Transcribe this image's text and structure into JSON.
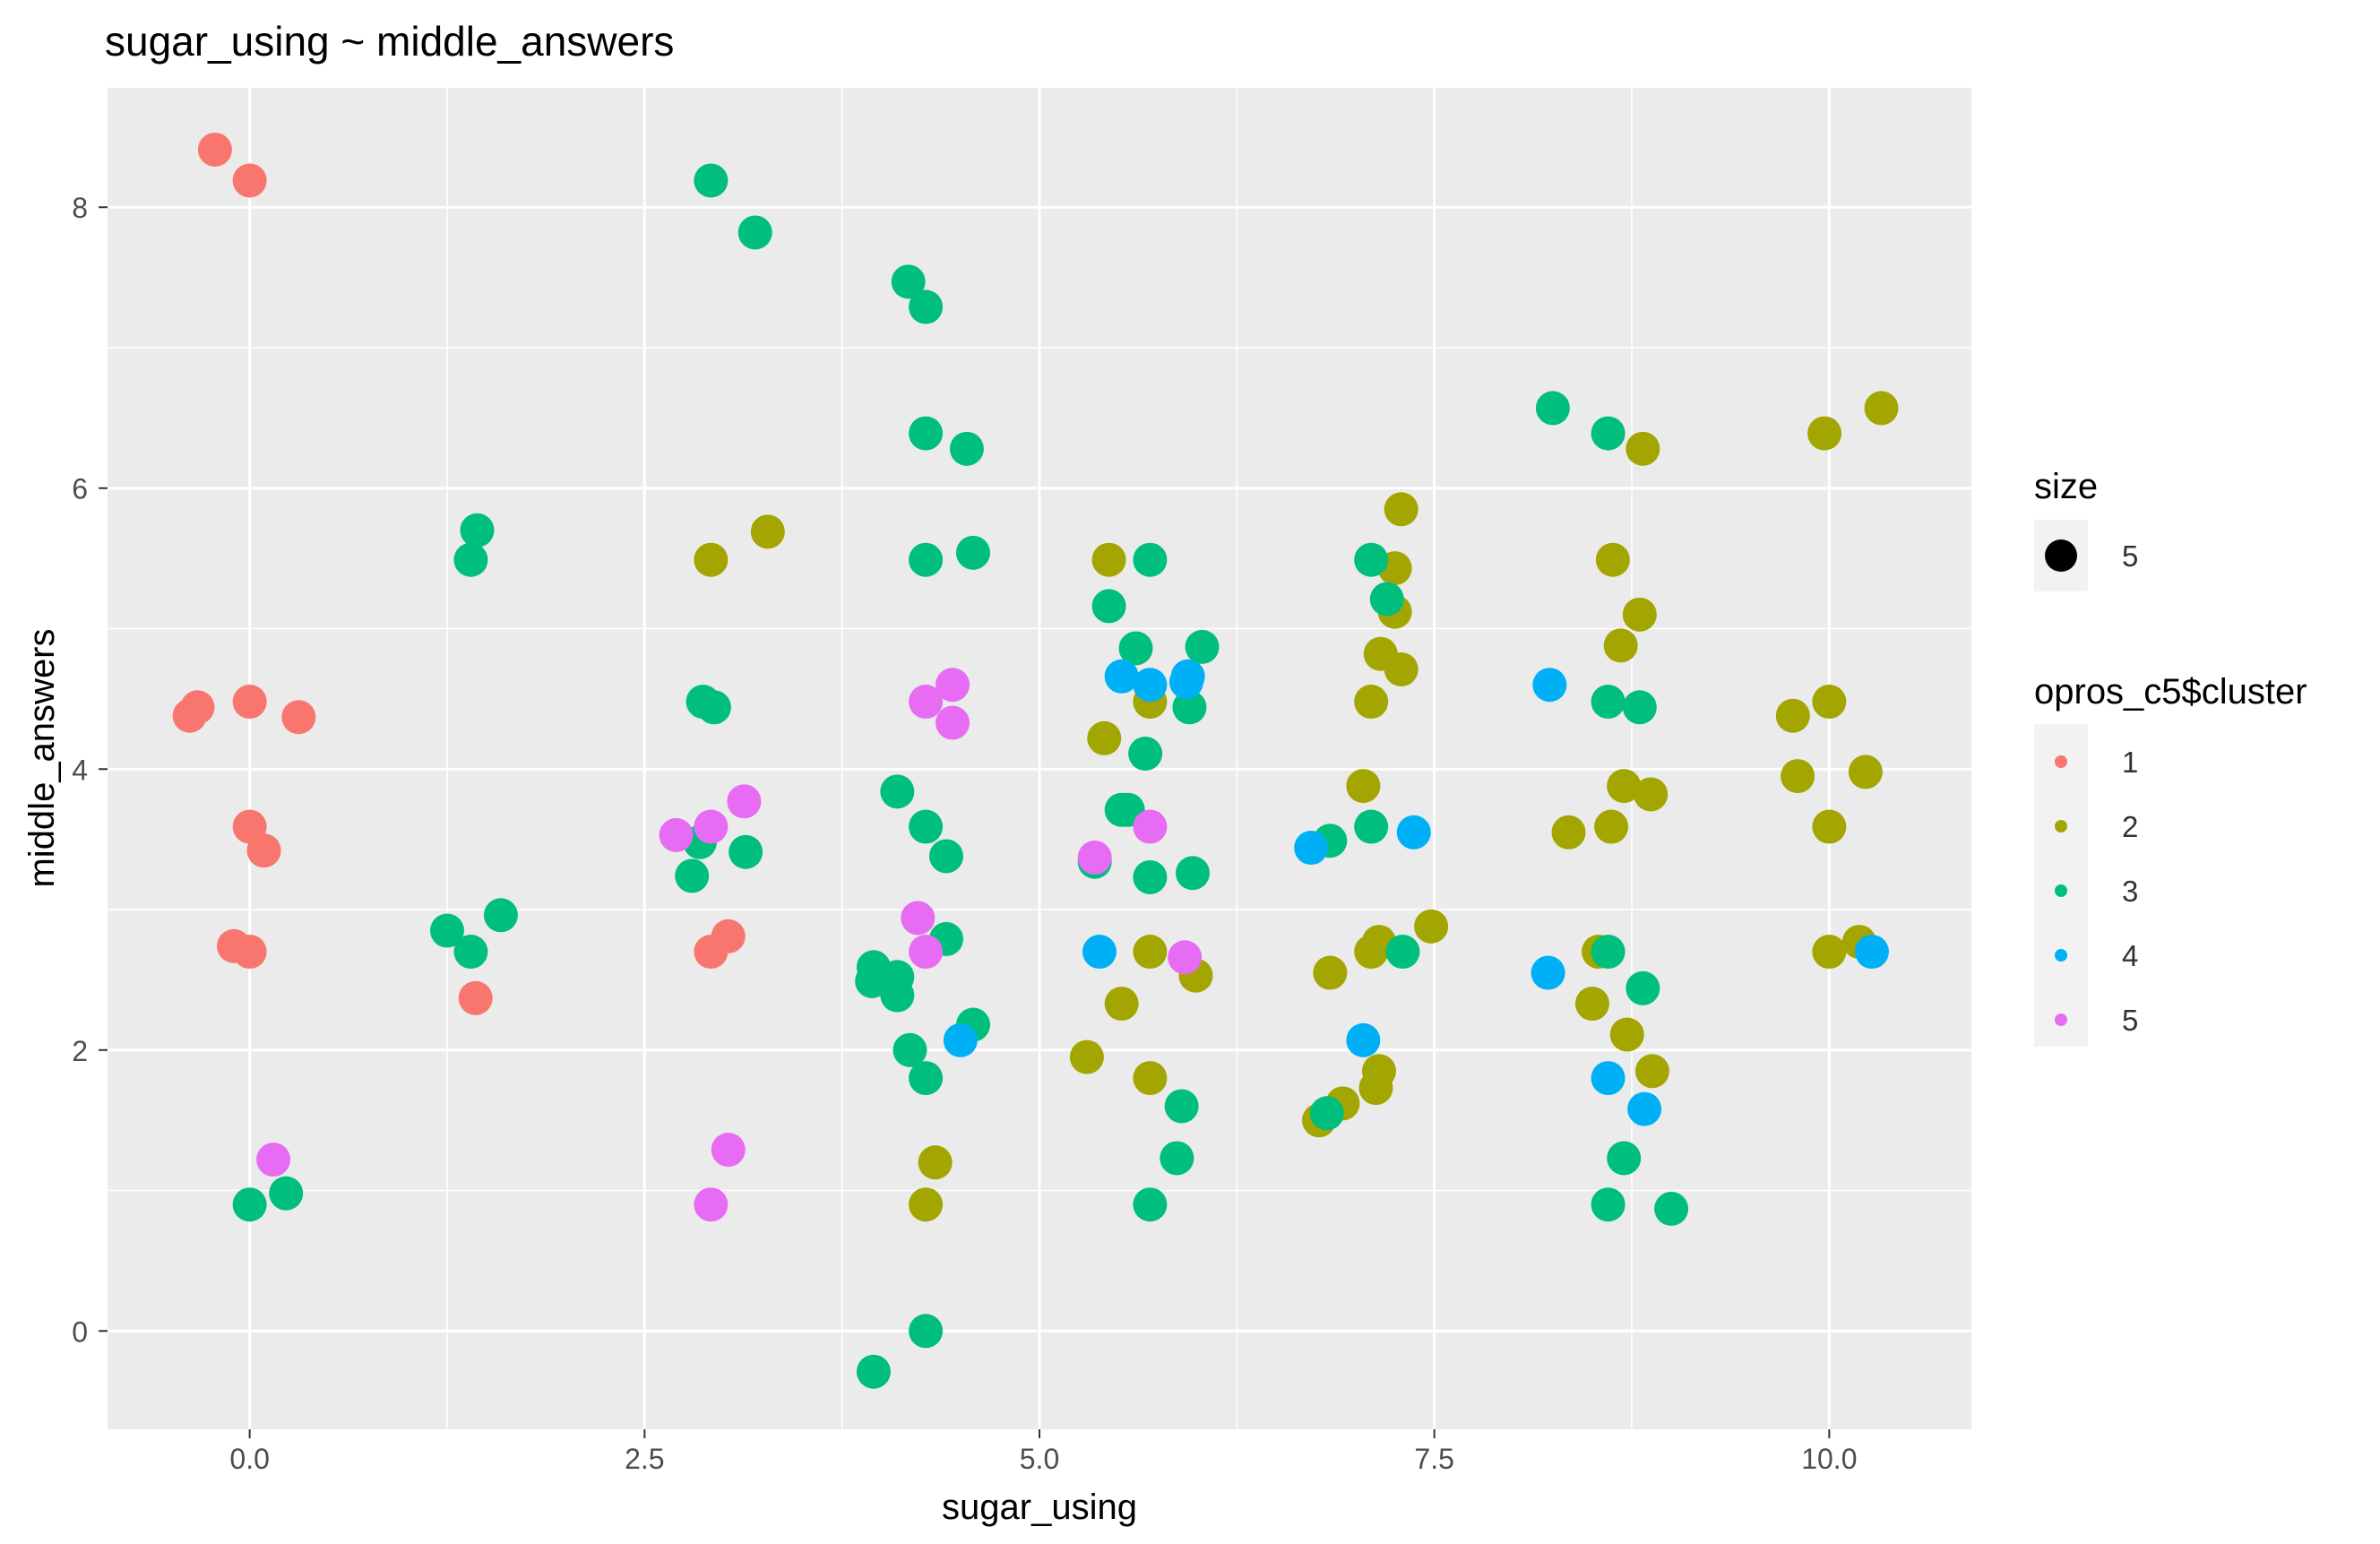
{
  "chart_data": {
    "type": "scatter",
    "title": "sugar_using ~ middle_answers",
    "xlabel": "sugar_using",
    "ylabel": "middle_answers",
    "xlim": [
      -0.9,
      10.9
    ],
    "ylim": [
      -0.7,
      8.85
    ],
    "x_ticks": [
      0.0,
      2.5,
      5.0,
      7.5,
      10.0
    ],
    "x_tick_labels": [
      "0.0",
      "2.5",
      "5.0",
      "7.5",
      "10.0"
    ],
    "y_ticks": [
      0,
      2,
      4,
      6,
      8
    ],
    "y_tick_labels": [
      "0",
      "2",
      "4",
      "6",
      "8"
    ],
    "grid": true,
    "legend_position": "right",
    "size_legend": {
      "title": "size",
      "label": "5"
    },
    "cluster_legend": {
      "title": "opros_c5$cluster"
    },
    "series": [
      {
        "name": "1",
        "color": "#F8766D",
        "points": [
          [
            -0.22,
            8.41
          ],
          [
            0.0,
            8.19
          ],
          [
            -0.38,
            4.38
          ],
          [
            -0.33,
            4.44
          ],
          [
            0.0,
            4.48
          ],
          [
            0.31,
            4.37
          ],
          [
            0.0,
            3.59
          ],
          [
            0.09,
            3.42
          ],
          [
            -0.1,
            2.74
          ],
          [
            0.0,
            2.7
          ],
          [
            1.43,
            2.37
          ],
          [
            2.92,
            2.7
          ],
          [
            3.03,
            2.81
          ]
        ]
      },
      {
        "name": "2",
        "color": "#A3A500",
        "points": [
          [
            2.92,
            5.49
          ],
          [
            3.28,
            5.69
          ],
          [
            4.34,
            1.2
          ],
          [
            4.28,
            0.9
          ],
          [
            5.3,
            1.95
          ],
          [
            5.41,
            4.22
          ],
          [
            5.44,
            5.49
          ],
          [
            5.52,
            2.33
          ],
          [
            5.7,
            4.48
          ],
          [
            5.7,
            2.7
          ],
          [
            5.7,
            1.8
          ],
          [
            5.99,
            2.53
          ],
          [
            6.77,
            1.5
          ],
          [
            6.84,
            2.55
          ],
          [
            6.92,
            1.62
          ],
          [
            7.05,
            3.88
          ],
          [
            7.1,
            4.48
          ],
          [
            7.1,
            2.7
          ],
          [
            7.15,
            2.77
          ],
          [
            7.13,
            1.73
          ],
          [
            7.15,
            1.85
          ],
          [
            7.16,
            4.82
          ],
          [
            7.25,
            5.43
          ],
          [
            7.25,
            5.12
          ],
          [
            7.29,
            5.85
          ],
          [
            7.29,
            4.71
          ],
          [
            7.48,
            2.88
          ],
          [
            8.35,
            3.55
          ],
          [
            8.5,
            2.33
          ],
          [
            8.54,
            2.7
          ],
          [
            8.62,
            3.59
          ],
          [
            8.63,
            5.49
          ],
          [
            8.68,
            4.88
          ],
          [
            8.7,
            3.88
          ],
          [
            8.72,
            2.11
          ],
          [
            8.8,
            5.1
          ],
          [
            8.82,
            6.28
          ],
          [
            8.87,
            3.82
          ],
          [
            8.88,
            1.85
          ],
          [
            9.77,
            4.38
          ],
          [
            9.8,
            3.95
          ],
          [
            9.97,
            6.39
          ],
          [
            10.0,
            4.48
          ],
          [
            10.0,
            3.59
          ],
          [
            10.0,
            2.7
          ],
          [
            10.19,
            2.77
          ],
          [
            10.23,
            3.98
          ],
          [
            10.33,
            6.57
          ]
        ]
      },
      {
        "name": "3",
        "color": "#00BF7D",
        "points": [
          [
            0.0,
            0.9
          ],
          [
            0.23,
            0.98
          ],
          [
            1.25,
            2.85
          ],
          [
            1.4,
            2.7
          ],
          [
            1.59,
            2.96
          ],
          [
            1.4,
            5.49
          ],
          [
            1.44,
            5.7
          ],
          [
            2.92,
            8.19
          ],
          [
            3.2,
            7.82
          ],
          [
            2.87,
            4.48
          ],
          [
            2.94,
            4.44
          ],
          [
            2.85,
            3.48
          ],
          [
            2.8,
            3.24
          ],
          [
            3.14,
            3.41
          ],
          [
            4.17,
            7.47
          ],
          [
            4.28,
            7.29
          ],
          [
            4.28,
            6.39
          ],
          [
            4.54,
            6.28
          ],
          [
            4.28,
            5.49
          ],
          [
            4.58,
            5.54
          ],
          [
            4.1,
            3.84
          ],
          [
            4.28,
            3.59
          ],
          [
            4.41,
            3.38
          ],
          [
            4.41,
            2.79
          ],
          [
            3.95,
            2.59
          ],
          [
            3.94,
            2.49
          ],
          [
            4.1,
            2.52
          ],
          [
            4.1,
            2.39
          ],
          [
            4.18,
            2.0
          ],
          [
            4.28,
            1.8
          ],
          [
            4.58,
            2.18
          ],
          [
            4.28,
            0.0
          ],
          [
            3.95,
            -0.29
          ],
          [
            5.44,
            5.16
          ],
          [
            5.7,
            5.49
          ],
          [
            5.61,
            4.86
          ],
          [
            5.67,
            4.11
          ],
          [
            6.03,
            4.87
          ],
          [
            5.95,
            4.44
          ],
          [
            5.52,
            3.71
          ],
          [
            5.56,
            3.71
          ],
          [
            5.7,
            3.23
          ],
          [
            5.97,
            3.26
          ],
          [
            5.35,
            3.34
          ],
          [
            5.9,
            1.6
          ],
          [
            5.87,
            1.23
          ],
          [
            5.7,
            0.9
          ],
          [
            6.84,
            3.49
          ],
          [
            7.1,
            5.49
          ],
          [
            7.2,
            5.21
          ],
          [
            7.1,
            3.59
          ],
          [
            7.3,
            2.7
          ],
          [
            6.82,
            1.55
          ],
          [
            8.25,
            6.57
          ],
          [
            8.6,
            6.39
          ],
          [
            8.6,
            4.48
          ],
          [
            8.8,
            4.44
          ],
          [
            8.6,
            2.7
          ],
          [
            8.82,
            2.44
          ],
          [
            8.7,
            1.23
          ],
          [
            8.6,
            0.9
          ],
          [
            9.0,
            0.87
          ]
        ]
      },
      {
        "name": "4",
        "color": "#00B0F6",
        "points": [
          [
            4.5,
            2.07
          ],
          [
            5.38,
            2.7
          ],
          [
            5.52,
            4.66
          ],
          [
            5.7,
            4.6
          ],
          [
            5.93,
            4.62
          ],
          [
            5.94,
            4.66
          ],
          [
            6.72,
            3.44
          ],
          [
            7.05,
            2.07
          ],
          [
            7.37,
            3.55
          ],
          [
            8.23,
            4.6
          ],
          [
            8.22,
            2.55
          ],
          [
            8.6,
            1.8
          ],
          [
            8.83,
            1.58
          ],
          [
            10.27,
            2.7
          ]
        ]
      },
      {
        "name": "5",
        "color": "#E76BF3",
        "points": [
          [
            0.15,
            1.22
          ],
          [
            2.7,
            3.53
          ],
          [
            2.92,
            3.59
          ],
          [
            3.13,
            3.77
          ],
          [
            2.92,
            0.9
          ],
          [
            3.03,
            1.29
          ],
          [
            4.28,
            4.48
          ],
          [
            4.45,
            4.6
          ],
          [
            4.45,
            4.33
          ],
          [
            4.23,
            2.94
          ],
          [
            4.28,
            2.7
          ],
          [
            5.35,
            3.37
          ],
          [
            5.7,
            3.59
          ],
          [
            5.92,
            2.66
          ]
        ]
      }
    ]
  }
}
